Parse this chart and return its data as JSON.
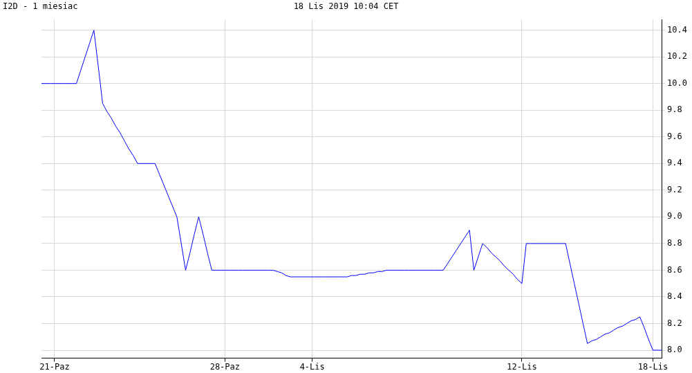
{
  "chart_data": {
    "type": "line",
    "title": "I2D - 1 miesiac",
    "subtitle": "18 Lis 2019 10:04 CET",
    "categories": [
      null,
      null,
      null,
      "21-Paz",
      null,
      null,
      null,
      null,
      null,
      null,
      null,
      null,
      null,
      null,
      null,
      null,
      null,
      null,
      null,
      null,
      null,
      null,
      null,
      null,
      null,
      null,
      null,
      null,
      null,
      null,
      null,
      null,
      null,
      null,
      null,
      null,
      null,
      null,
      null,
      null,
      null,
      null,
      "28-Paz",
      null,
      null,
      null,
      null,
      null,
      null,
      null,
      null,
      null,
      null,
      null,
      null,
      null,
      null,
      null,
      null,
      null,
      null,
      null,
      "4-Lis",
      null,
      null,
      null,
      null,
      null,
      null,
      null,
      null,
      null,
      null,
      null,
      null,
      null,
      null,
      null,
      null,
      null,
      null,
      null,
      null,
      null,
      null,
      null,
      null,
      null,
      null,
      null,
      null,
      null,
      null,
      null,
      null,
      null,
      null,
      null,
      null,
      null,
      null,
      null,
      null,
      null,
      null,
      null,
      null,
      null,
      null,
      null,
      "12-Lis",
      null,
      null,
      null,
      null,
      null,
      null,
      null,
      null,
      null,
      null,
      null,
      null,
      null,
      null,
      null,
      null,
      null,
      null,
      null,
      null,
      null,
      null,
      null,
      null,
      null,
      null,
      null,
      null,
      null,
      "18-Lis",
      null,
      null
    ],
    "series": [
      {
        "color": "#0000ff",
        "values": [
          10.0,
          10.0,
          10.0,
          10.0,
          10.0,
          10.0,
          10.0,
          10.0,
          10.0,
          10.1,
          10.2,
          10.3,
          10.4,
          10.13,
          9.85,
          9.79,
          9.74,
          9.68,
          9.63,
          9.57,
          9.51,
          9.46,
          9.4,
          9.4,
          9.4,
          9.4,
          9.4,
          9.32,
          9.24,
          9.16,
          9.08,
          9.0,
          8.8,
          8.6,
          8.73,
          8.87,
          9.0,
          8.87,
          8.73,
          8.6,
          8.6,
          8.6,
          8.6,
          8.6,
          8.6,
          8.6,
          8.6,
          8.6,
          8.6,
          8.6,
          8.6,
          8.6,
          8.6,
          8.6,
          8.59,
          8.58,
          8.56,
          8.55,
          8.55,
          8.55,
          8.55,
          8.55,
          8.55,
          8.55,
          8.55,
          8.55,
          8.55,
          8.55,
          8.55,
          8.55,
          8.55,
          8.56,
          8.56,
          8.57,
          8.57,
          8.58,
          8.58,
          8.59,
          8.59,
          8.6,
          8.6,
          8.6,
          8.6,
          8.6,
          8.6,
          8.6,
          8.6,
          8.6,
          8.6,
          8.6,
          8.6,
          8.6,
          8.6,
          8.65,
          8.7,
          8.75,
          8.8,
          8.85,
          8.9,
          8.6,
          8.7,
          8.8,
          8.77,
          8.73,
          8.7,
          8.67,
          8.63,
          8.6,
          8.57,
          8.53,
          8.5,
          8.8,
          8.8,
          8.8,
          8.8,
          8.8,
          8.8,
          8.8,
          8.8,
          8.8,
          8.8,
          8.65,
          8.5,
          8.35,
          8.2,
          8.05,
          8.07,
          8.08,
          8.1,
          8.12,
          8.13,
          8.15,
          8.17,
          8.18,
          8.2,
          8.22,
          8.23,
          8.25,
          8.17,
          8.08,
          8.0,
          8.0,
          8.0
        ]
      }
    ],
    "ylim": [
      7.94,
      10.48
    ],
    "yticks": [
      {
        "value": 8,
        "label": "8.0"
      },
      {
        "value": 8.2,
        "label": "8.2"
      },
      {
        "value": 8.4,
        "label": "8.4"
      },
      {
        "value": 8.6,
        "label": "8.6"
      },
      {
        "value": 8.8,
        "label": "8.8"
      },
      {
        "value": 9,
        "label": "9.0"
      },
      {
        "value": 9.2,
        "label": "9.2"
      },
      {
        "value": 9.4,
        "label": "9.4"
      },
      {
        "value": 9.6,
        "label": "9.6"
      },
      {
        "value": 9.8,
        "label": "9.8"
      },
      {
        "value": 10,
        "label": "10.0"
      },
      {
        "value": 10.2,
        "label": "10.2"
      },
      {
        "value": 10.4,
        "label": "10.4"
      }
    ],
    "grid": true,
    "legend": false,
    "marker": "none",
    "line_style": "solid"
  }
}
